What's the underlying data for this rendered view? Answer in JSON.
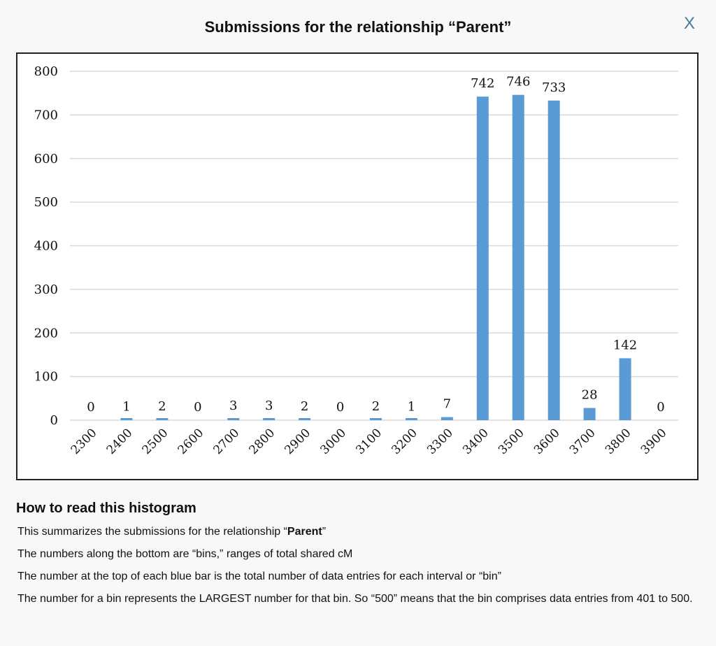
{
  "modal": {
    "title": "Submissions for the relationship “Parent”",
    "close_label": "X"
  },
  "help": {
    "heading": "How to read this histogram",
    "p1_prefix": "This summarizes the submissions for the relationship “",
    "p1_bold": "Parent",
    "p1_suffix": "”",
    "p2": "The numbers along the bottom are “bins,” ranges of total shared cM",
    "p3": "The number at the top of each blue bar is the total number of data entries for each interval or “bin”",
    "p4": "The number for a bin represents the LARGEST number for that bin. So “500” means that the bin comprises data entries from 401 to 500."
  },
  "chart_data": {
    "type": "bar",
    "categories": [
      "2300",
      "2400",
      "2500",
      "2600",
      "2700",
      "2800",
      "2900",
      "3000",
      "3100",
      "3200",
      "3300",
      "3400",
      "3500",
      "3600",
      "3700",
      "3800",
      "3900"
    ],
    "values": [
      0,
      1,
      2,
      0,
      3,
      3,
      2,
      0,
      2,
      1,
      7,
      742,
      746,
      733,
      28,
      142,
      0
    ],
    "ylim": [
      0,
      800
    ],
    "yticks": [
      0,
      100,
      200,
      300,
      400,
      500,
      600,
      700,
      800
    ],
    "grid": true,
    "data_labels": true,
    "bar_color": "#5b9bd5"
  }
}
